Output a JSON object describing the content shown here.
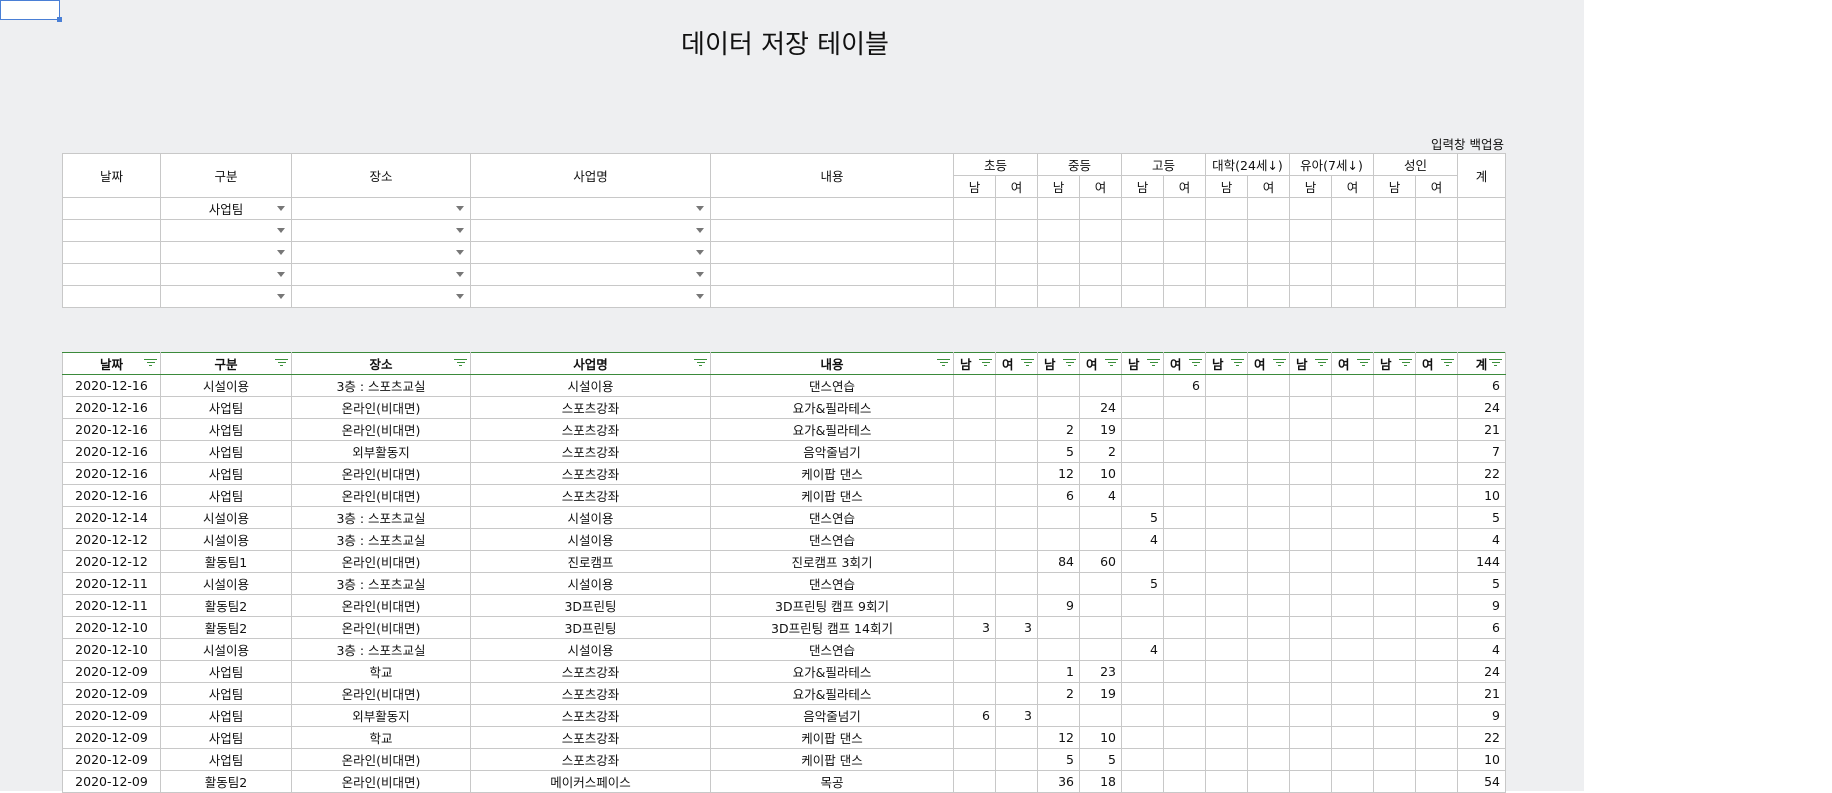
{
  "title": "데이터 저장 테이블",
  "backup_label": "입력창 백업용",
  "input_table": {
    "headers": {
      "date": "날짜",
      "category": "구분",
      "place": "장소",
      "program": "사업명",
      "content": "내용",
      "total": "계"
    },
    "groups": [
      "초등",
      "중등",
      "고등",
      "대학(24세↓)",
      "유아(7세↓)",
      "성인"
    ],
    "sub": [
      "남",
      "여"
    ],
    "first_row_category": "사업팀"
  },
  "data_table": {
    "headers": [
      "날짜",
      "구분",
      "장소",
      "사업명",
      "내용",
      "남",
      "여",
      "남",
      "여",
      "남",
      "여",
      "남",
      "여",
      "남",
      "여",
      "남",
      "여",
      "계"
    ],
    "rows": [
      [
        "2020-12-16",
        "시설이용",
        "3층 : 스포츠교실",
        "시설이용",
        "댄스연습",
        "",
        "",
        "",
        "",
        "",
        "6",
        "",
        "",
        "",
        "",
        "",
        "",
        "6"
      ],
      [
        "2020-12-16",
        "사업팀",
        "온라인(비대면)",
        "스포츠강좌",
        "요가&필라테스",
        "",
        "",
        "",
        "24",
        "",
        "",
        "",
        "",
        "",
        "",
        "",
        "",
        "24"
      ],
      [
        "2020-12-16",
        "사업팀",
        "온라인(비대면)",
        "스포츠강좌",
        "요가&필라테스",
        "",
        "",
        "2",
        "19",
        "",
        "",
        "",
        "",
        "",
        "",
        "",
        "",
        "21"
      ],
      [
        "2020-12-16",
        "사업팀",
        "외부활동지",
        "스포츠강좌",
        "음악줄넘기",
        "",
        "",
        "5",
        "2",
        "",
        "",
        "",
        "",
        "",
        "",
        "",
        "",
        "7"
      ],
      [
        "2020-12-16",
        "사업팀",
        "온라인(비대면)",
        "스포츠강좌",
        "케이팝 댄스",
        "",
        "",
        "12",
        "10",
        "",
        "",
        "",
        "",
        "",
        "",
        "",
        "",
        "22"
      ],
      [
        "2020-12-16",
        "사업팀",
        "온라인(비대면)",
        "스포츠강좌",
        "케이팝 댄스",
        "",
        "",
        "6",
        "4",
        "",
        "",
        "",
        "",
        "",
        "",
        "",
        "",
        "10"
      ],
      [
        "2020-12-14",
        "시설이용",
        "3층 : 스포츠교실",
        "시설이용",
        "댄스연습",
        "",
        "",
        "",
        "",
        "5",
        "",
        "",
        "",
        "",
        "",
        "",
        "",
        "5"
      ],
      [
        "2020-12-12",
        "시설이용",
        "3층 : 스포츠교실",
        "시설이용",
        "댄스연습",
        "",
        "",
        "",
        "",
        "4",
        "",
        "",
        "",
        "",
        "",
        "",
        "",
        "4"
      ],
      [
        "2020-12-12",
        "활동팀1",
        "온라인(비대면)",
        "진로캠프",
        "진로캠프 3회기",
        "",
        "",
        "84",
        "60",
        "",
        "",
        "",
        "",
        "",
        "",
        "",
        "",
        "144"
      ],
      [
        "2020-12-11",
        "시설이용",
        "3층 : 스포츠교실",
        "시설이용",
        "댄스연습",
        "",
        "",
        "",
        "",
        "5",
        "",
        "",
        "",
        "",
        "",
        "",
        "",
        "5"
      ],
      [
        "2020-12-11",
        "활동팀2",
        "온라인(비대면)",
        "3D프린팅",
        "3D프린팅 캠프 9회기",
        "",
        "",
        "9",
        "",
        "",
        "",
        "",
        "",
        "",
        "",
        "",
        "",
        "9"
      ],
      [
        "2020-12-10",
        "활동팀2",
        "온라인(비대면)",
        "3D프린팅",
        "3D프린팅 캠프 14회기",
        "3",
        "3",
        "",
        "",
        "",
        "",
        "",
        "",
        "",
        "",
        "",
        "",
        "6"
      ],
      [
        "2020-12-10",
        "시설이용",
        "3층 : 스포츠교실",
        "시설이용",
        "댄스연습",
        "",
        "",
        "",
        "",
        "4",
        "",
        "",
        "",
        "",
        "",
        "",
        "",
        "4"
      ],
      [
        "2020-12-09",
        "사업팀",
        "학교",
        "스포츠강좌",
        "요가&필라테스",
        "",
        "",
        "1",
        "23",
        "",
        "",
        "",
        "",
        "",
        "",
        "",
        "",
        "24"
      ],
      [
        "2020-12-09",
        "사업팀",
        "온라인(비대면)",
        "스포츠강좌",
        "요가&필라테스",
        "",
        "",
        "2",
        "19",
        "",
        "",
        "",
        "",
        "",
        "",
        "",
        "",
        "21"
      ],
      [
        "2020-12-09",
        "사업팀",
        "외부활동지",
        "스포츠강좌",
        "음악줄넘기",
        "6",
        "3",
        "",
        "",
        "",
        "",
        "",
        "",
        "",
        "",
        "",
        "",
        "9"
      ],
      [
        "2020-12-09",
        "사업팀",
        "학교",
        "스포츠강좌",
        "케이팝 댄스",
        "",
        "",
        "12",
        "10",
        "",
        "",
        "",
        "",
        "",
        "",
        "",
        "",
        "22"
      ],
      [
        "2020-12-09",
        "사업팀",
        "온라인(비대면)",
        "스포츠강좌",
        "케이팝 댄스",
        "",
        "",
        "5",
        "5",
        "",
        "",
        "",
        "",
        "",
        "",
        "",
        "",
        "10"
      ],
      [
        "2020-12-09",
        "활동팀2",
        "온라인(비대면)",
        "메이커스페이스",
        "목공",
        "",
        "",
        "36",
        "18",
        "",
        "",
        "",
        "",
        "",
        "",
        "",
        "",
        "54"
      ]
    ]
  }
}
